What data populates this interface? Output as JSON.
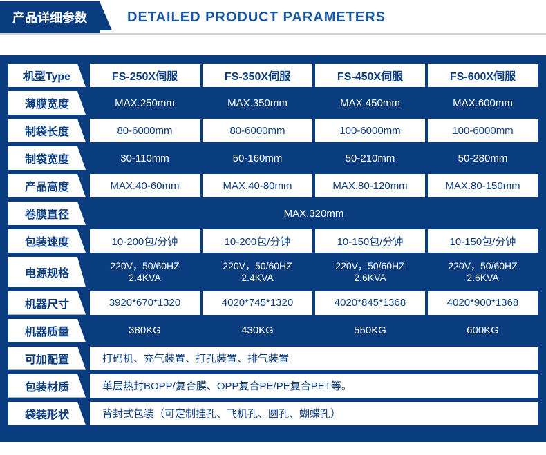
{
  "header": {
    "tab_cn": "产品详细参数",
    "title_en": "DETAILED PRODUCT PARAMETERS"
  },
  "table": {
    "type_label": "机型Type",
    "models": [
      "FS-250X伺服",
      "FS-350X伺服",
      "FS-450X伺服",
      "FS-600X伺服"
    ],
    "rows": [
      {
        "label": "薄膜宽度",
        "values": [
          "MAX.250mm",
          "MAX.350mm",
          "MAX.450mm",
          "MAX.600mm"
        ],
        "style": "blue"
      },
      {
        "label": "制袋长度",
        "values": [
          "80-6000mm",
          "80-6000mm",
          "100-6000mm",
          "100-6000mm"
        ],
        "style": "white"
      },
      {
        "label": "制袋宽度",
        "values": [
          "30-110mm",
          "50-160mm",
          "50-210mm",
          "50-280mm"
        ],
        "style": "blue"
      },
      {
        "label": "产品高度",
        "values": [
          "MAX.40-60mm",
          "MAX.40-80mm",
          "MAX.80-120mm",
          "MAX.80-150mm"
        ],
        "style": "white"
      },
      {
        "label": "卷膜直径",
        "merged": "MAX.320mm",
        "style": "blue"
      },
      {
        "label": "包装速度",
        "values": [
          "10-200包/分钟",
          "10-200包/分钟",
          "10-150包/分钟",
          "10-150包/分钟"
        ],
        "style": "white"
      },
      {
        "label": "电源规格",
        "values2": [
          [
            "220V，50/60HZ",
            "2.4KVA"
          ],
          [
            "220V，50/60HZ",
            "2.4KVA"
          ],
          [
            "220V，50/60HZ",
            "2.6KVA"
          ],
          [
            "220V，50/60HZ",
            "2.6KVA"
          ]
        ],
        "style": "blue"
      },
      {
        "label": "机器尺寸",
        "values": [
          "3920*670*1320",
          "4020*745*1320",
          "4020*845*1368",
          "4020*900*1368"
        ],
        "style": "white"
      },
      {
        "label": "机器质量",
        "values": [
          "380KG",
          "430KG",
          "550KG",
          "600KG"
        ],
        "style": "blue"
      },
      {
        "label": "可加配置",
        "merged": "打码机、充气装置、打孔装置、排气装置",
        "style": "white",
        "align": "left"
      },
      {
        "label": "包装材质",
        "merged": "单层热封BOPP/复合膜、OPP复合PE/PE复合PET等。",
        "style": "white",
        "align": "left"
      },
      {
        "label": "袋装形状",
        "merged": "背封式包装（可定制挂孔、飞机孔、圆孔、蝴蝶孔）",
        "style": "white",
        "align": "left"
      }
    ]
  },
  "colors": {
    "brand_blue": "#0a3d80",
    "header_blue": "#1556a5",
    "white": "#ffffff"
  }
}
